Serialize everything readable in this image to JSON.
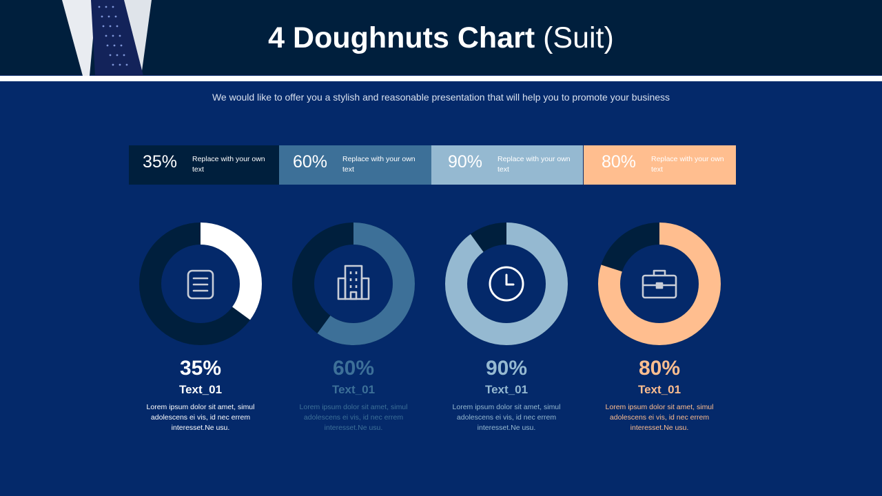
{
  "title_bold": "4 Doughnuts Chart",
  "title_light": "(Suit)",
  "subtitle": "We would like to offer you a stylish and reasonable presentation that will help you to promote your business",
  "colors": {
    "navy": "#001f3d",
    "background": "#04296a",
    "white": "#ffffff",
    "steel": "#3d7098",
    "lightblue": "#95b9d1",
    "peach": "#ffbe8f"
  },
  "stats": [
    {
      "percent": "35%",
      "text": "Replace with your own text"
    },
    {
      "percent": "60%",
      "text": "Replace with your own text"
    },
    {
      "percent": "90%",
      "text": "Replace with your own text"
    },
    {
      "percent": "80%",
      "text": "Replace with your own text"
    }
  ],
  "chart_data": {
    "type": "doughnut",
    "charts": [
      {
        "value": 35,
        "display": "35%",
        "label": "Text_01",
        "text": "Lorem ipsum dolor sit amet, simul adolescens ei vis, id nec errem interesset.Ne usu.",
        "icon": "document-icon",
        "color": "#ffffff"
      },
      {
        "value": 60,
        "display": "60%",
        "label": "Text_01",
        "text": "Lorem ipsum dolor sit amet, simul adolescens ei vis, id nec errem interesset.Ne usu.",
        "icon": "building-icon",
        "color": "#3d7098"
      },
      {
        "value": 90,
        "display": "90%",
        "label": "Text_01",
        "text": "Lorem ipsum dolor sit amet, simul adolescens ei vis, id nec errem interesset.Ne usu.",
        "icon": "clock-icon",
        "color": "#95b9d1"
      },
      {
        "value": 80,
        "display": "80%",
        "label": "Text_01",
        "text": "Lorem ipsum dolor sit amet, simul adolescens ei vis, id nec errem interesset.Ne usu.",
        "icon": "briefcase-icon",
        "color": "#ffbe8f"
      }
    ]
  }
}
